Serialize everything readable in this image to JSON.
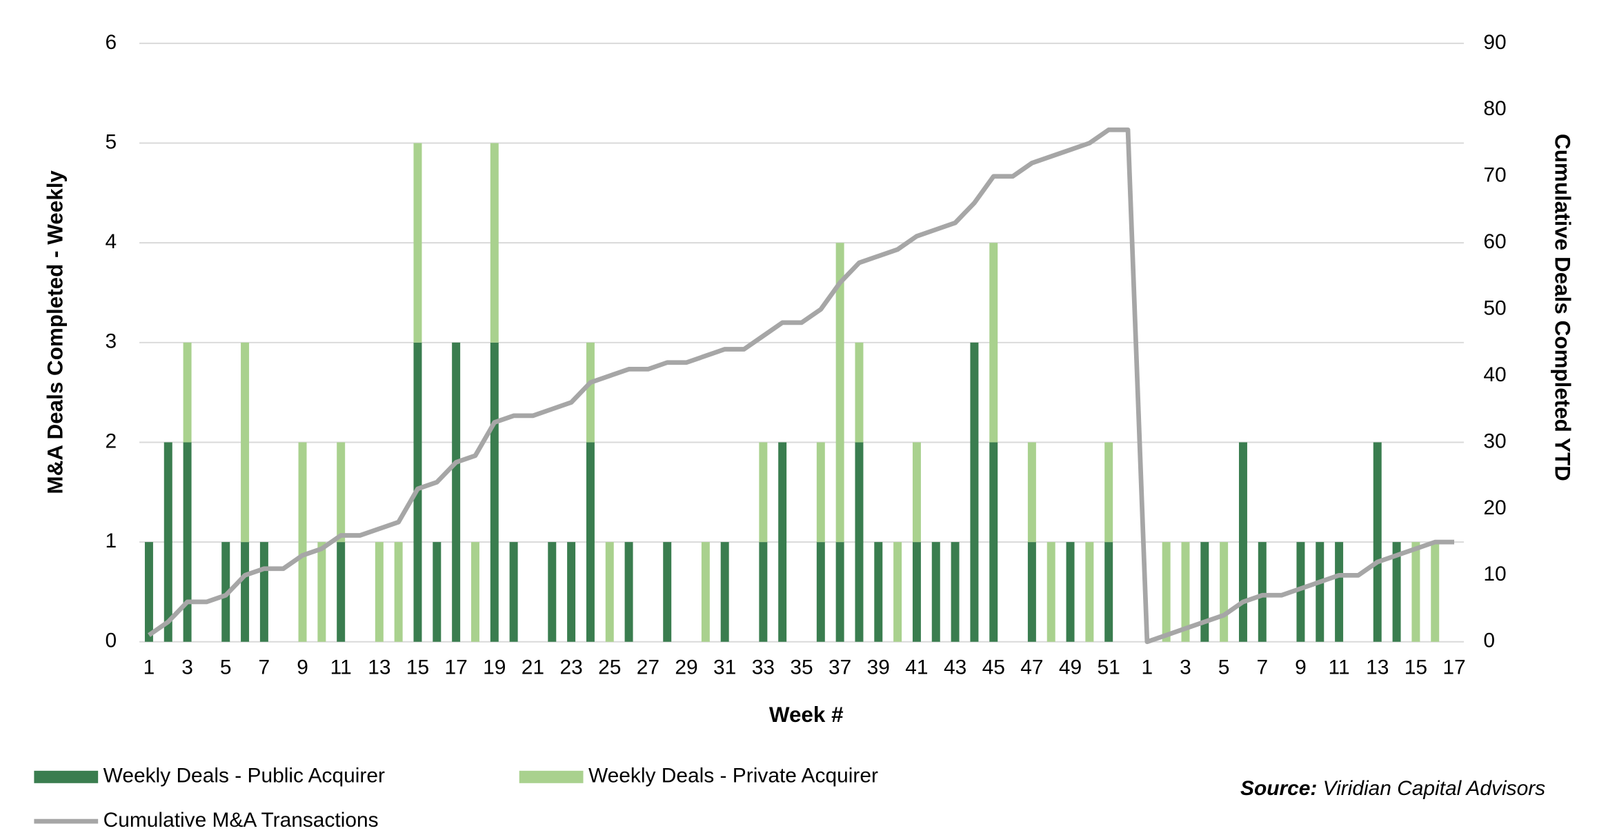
{
  "chart_data": {
    "type": "bar",
    "stacked": true,
    "categories": [
      1,
      null,
      3,
      null,
      5,
      null,
      7,
      null,
      9,
      null,
      11,
      null,
      13,
      null,
      15,
      null,
      17,
      null,
      19,
      null,
      21,
      null,
      23,
      null,
      25,
      null,
      27,
      null,
      29,
      null,
      31,
      null,
      33,
      null,
      35,
      null,
      37,
      null,
      39,
      null,
      41,
      null,
      43,
      null,
      45,
      null,
      47,
      null,
      49,
      null,
      51,
      null,
      1,
      null,
      3,
      null,
      5,
      null,
      7,
      null,
      9,
      null,
      11,
      null,
      13,
      null,
      15,
      null,
      17
    ],
    "series": [
      {
        "name": "Weekly Deals - Public Acquirer",
        "color": "#3a7d4f",
        "type": "bar",
        "values": [
          1,
          2,
          2,
          0,
          1,
          1,
          1,
          0,
          0,
          0,
          1,
          0,
          0,
          0,
          3,
          1,
          3,
          0,
          3,
          1,
          0,
          1,
          1,
          2,
          0,
          1,
          0,
          1,
          0,
          0,
          1,
          0,
          1,
          2,
          0,
          1,
          1,
          2,
          1,
          0,
          1,
          1,
          1,
          3,
          2,
          0,
          1,
          0,
          1,
          0,
          1,
          0,
          0,
          0,
          0,
          1,
          0,
          2,
          1,
          0,
          1,
          1,
          1,
          0,
          2,
          1,
          0,
          0,
          0
        ]
      },
      {
        "name": "Weekly Deals - Private Acquirer",
        "color": "#a9d18e",
        "type": "bar",
        "values": [
          0,
          0,
          1,
          0,
          0,
          2,
          0,
          0,
          2,
          1,
          1,
          0,
          1,
          1,
          2,
          0,
          0,
          1,
          2,
          0,
          0,
          0,
          0,
          1,
          1,
          0,
          0,
          0,
          0,
          1,
          0,
          0,
          1,
          0,
          0,
          1,
          3,
          1,
          0,
          1,
          1,
          0,
          0,
          0,
          2,
          0,
          1,
          1,
          0,
          1,
          1,
          0,
          0,
          1,
          1,
          0,
          1,
          0,
          0,
          0,
          0,
          0,
          0,
          0,
          0,
          0,
          1,
          1,
          0
        ]
      },
      {
        "name": "Cumulative M&A Transactions",
        "color": "#a6a6a6",
        "type": "line",
        "axis": "y2",
        "values": [
          1,
          3,
          6,
          6,
          7,
          10,
          11,
          11,
          13,
          14,
          16,
          16,
          17,
          18,
          23,
          24,
          27,
          28,
          33,
          34,
          34,
          35,
          36,
          39,
          40,
          41,
          41,
          42,
          42,
          43,
          44,
          44,
          46,
          48,
          48,
          50,
          54,
          57,
          58,
          59,
          61,
          62,
          63,
          66,
          70,
          70,
          72,
          73,
          74,
          75,
          77,
          77,
          0,
          1,
          2,
          3,
          4,
          6,
          7,
          7,
          8,
          9,
          10,
          10,
          12,
          13,
          14,
          15,
          15
        ]
      }
    ],
    "ylim": [
      0,
      6
    ],
    "yticks": [
      0,
      1,
      2,
      3,
      4,
      5,
      6
    ],
    "y2lim": [
      0,
      90
    ],
    "y2ticks": [
      0,
      10,
      20,
      30,
      40,
      50,
      60,
      70,
      80,
      90
    ],
    "grid": true,
    "legend": "bottom",
    "xlabel": "Week #",
    "ylabel": "M&A Deals Completed - Weekly",
    "y2label": "Cumulative Deals Completed YTD",
    "source_label": "Source:",
    "source": "Viridian Capital Advisors"
  }
}
